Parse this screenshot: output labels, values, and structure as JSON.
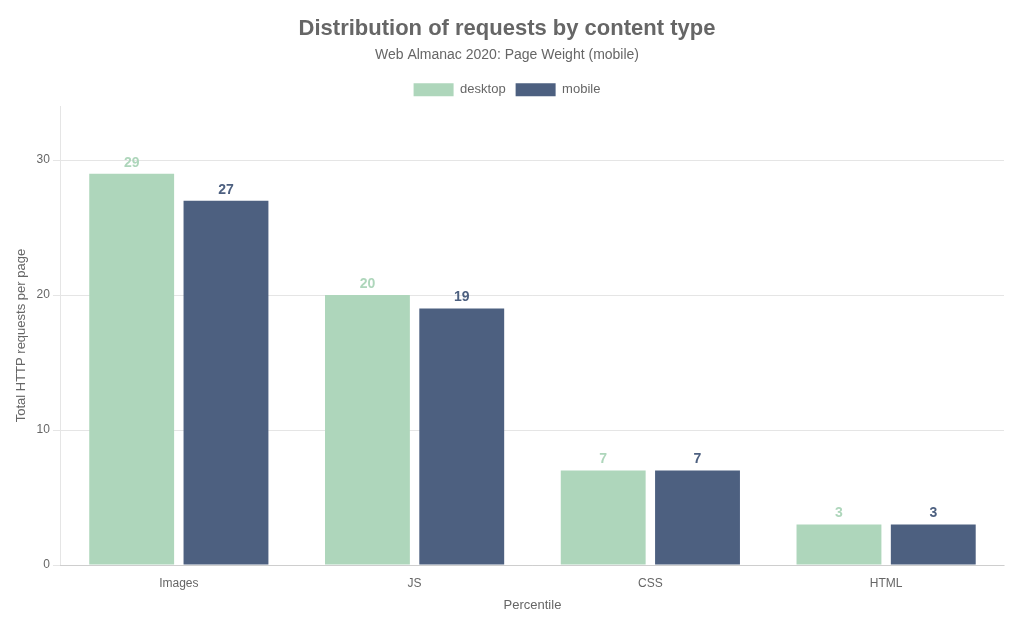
{
  "chart_data": {
    "type": "bar",
    "title": "Distribution of requests by content type",
    "subtitle": "Web Almanac 2020: Page Weight (mobile)",
    "categories": [
      "Images",
      "JS",
      "CSS",
      "HTML"
    ],
    "series": [
      {
        "name": "desktop",
        "color": "#aed6bb",
        "values": [
          29,
          20,
          7,
          3
        ]
      },
      {
        "name": "mobile",
        "color": "#4d6080",
        "values": [
          27,
          19,
          7,
          3
        ]
      }
    ],
    "xlabel": "Percentile",
    "ylabel": "Total HTTP requests per page",
    "ylim": [
      0,
      34
    ],
    "yticks": [
      0,
      10,
      20,
      30
    ],
    "grid": true,
    "legend": "top",
    "data_labels": true
  }
}
